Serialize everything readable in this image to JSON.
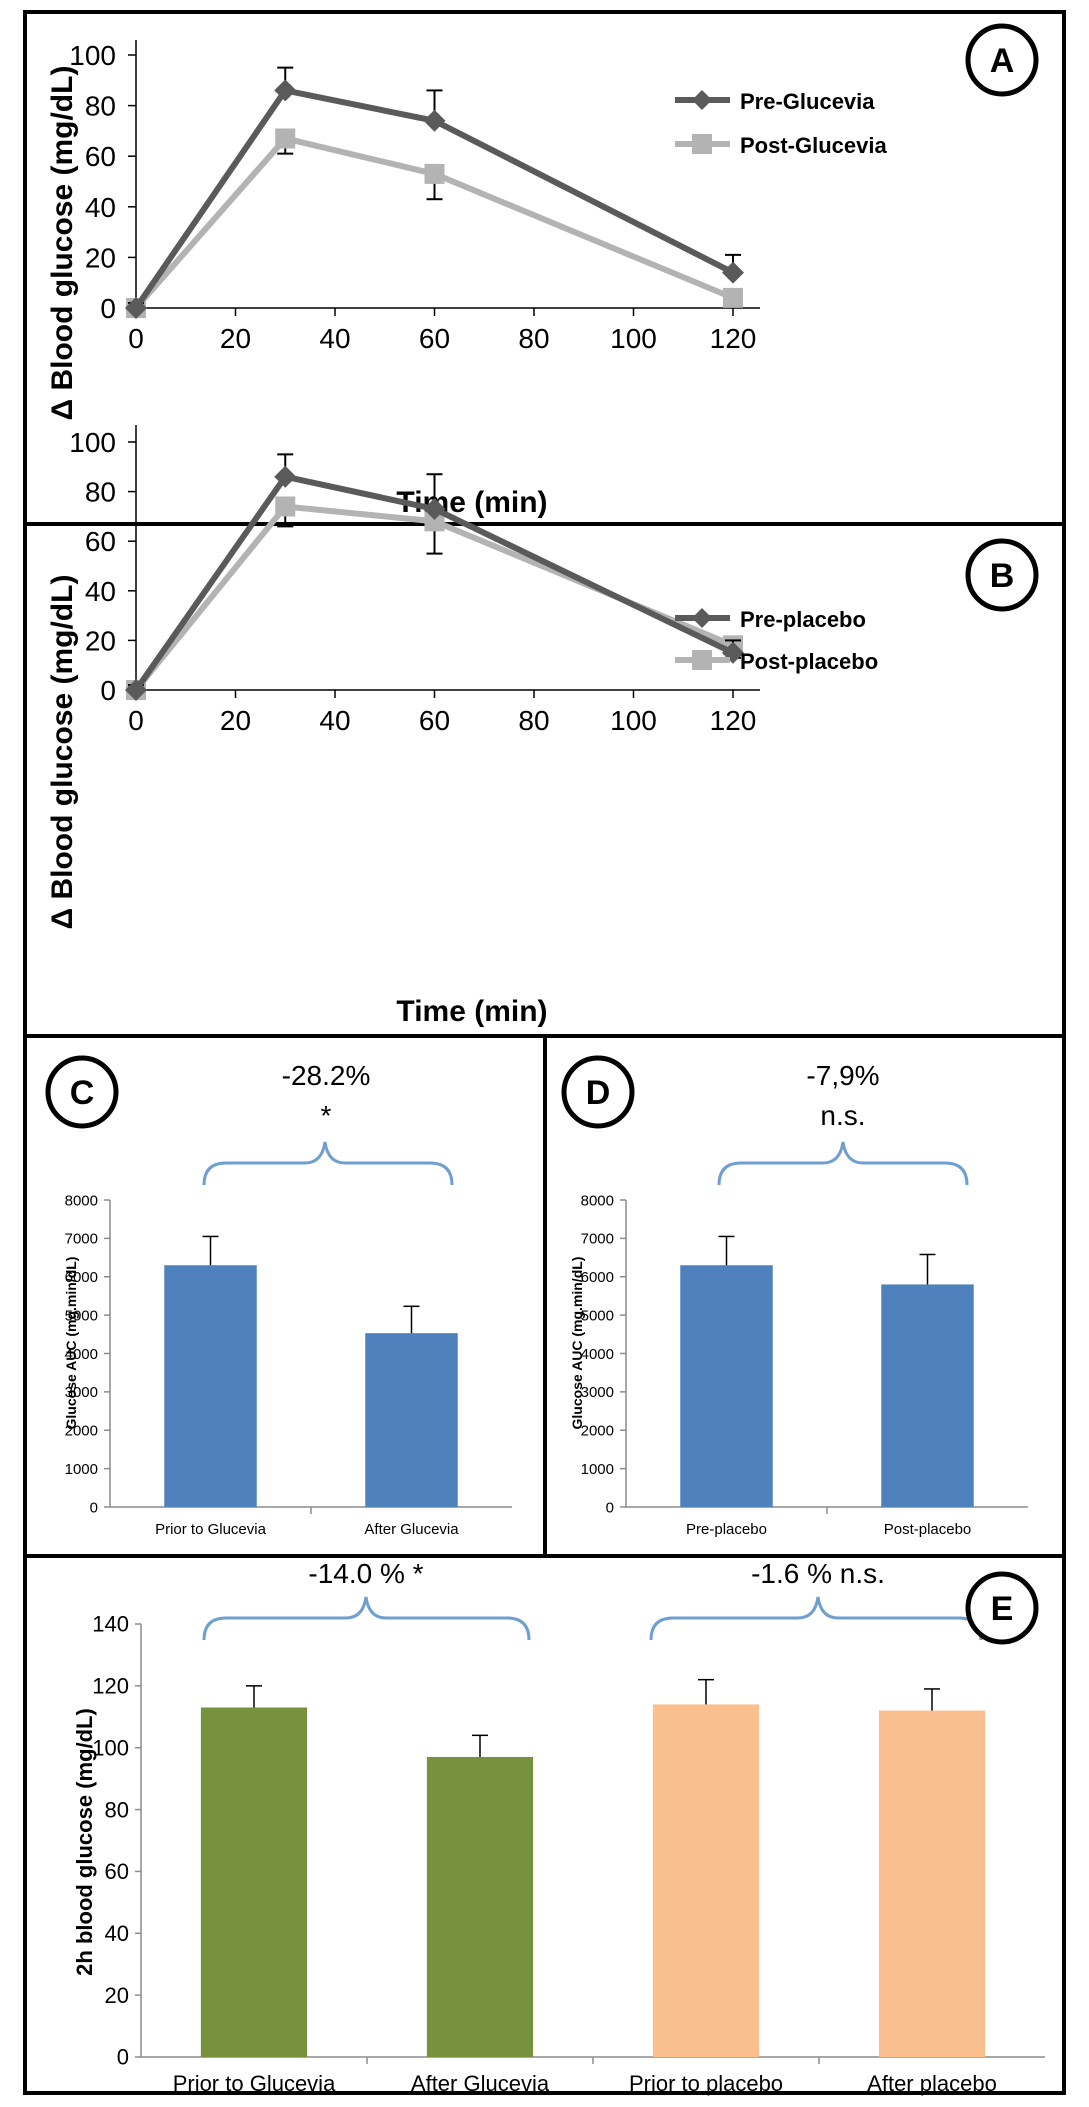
{
  "panel_labels": {
    "a": "A",
    "b": "B",
    "c": "C",
    "d": "D",
    "e": "E"
  },
  "colors": {
    "pre_line": "#5a5a5a",
    "post_line": "#b3b3b3",
    "bar_blue": "#4f81bd",
    "bar_green": "#76923c",
    "bar_peach": "#f9bf8f",
    "brace": "#6f9fd0",
    "axis": "#000000"
  },
  "annotations": {
    "c_pct": "-28.2%",
    "c_sig": "*",
    "d_pct": "-7,9%",
    "d_sig": "n.s.",
    "e_left": "-14.0 % *",
    "e_right": "-1.6 % n.s."
  },
  "chart_data": [
    {
      "id": "A",
      "type": "line",
      "xlabel": "Time (min)",
      "ylabel": "Δ Blood glucose (mg/dL)",
      "xlim": [
        0,
        120
      ],
      "ylim": [
        0,
        100
      ],
      "xticks": [
        0,
        20,
        40,
        60,
        80,
        100,
        120
      ],
      "yticks": [
        0,
        20,
        40,
        60,
        80,
        100
      ],
      "legend": "top-right",
      "grid": false,
      "x": [
        0,
        30,
        60,
        120
      ],
      "series": [
        {
          "name": "Pre-Glucevia",
          "marker": "diamond",
          "values": [
            0,
            86,
            74,
            14
          ],
          "error": [
            2,
            9,
            12,
            7
          ]
        },
        {
          "name": "Post-Glucevia",
          "marker": "square",
          "values": [
            0,
            67,
            53,
            4
          ],
          "error": [
            2,
            6,
            10,
            0
          ]
        }
      ]
    },
    {
      "id": "B",
      "type": "line",
      "xlabel": "Time (min)",
      "ylabel": "Δ Blood glucose (mg/dL)",
      "xlim": [
        0,
        120
      ],
      "ylim": [
        0,
        100
      ],
      "xticks": [
        0,
        20,
        40,
        60,
        80,
        100,
        120
      ],
      "yticks": [
        0,
        20,
        40,
        60,
        80,
        100
      ],
      "legend": "top-right",
      "grid": false,
      "x": [
        0,
        30,
        60,
        120
      ],
      "series": [
        {
          "name": "Pre-placebo",
          "marker": "diamond",
          "values": [
            0,
            86,
            73,
            15
          ],
          "error": [
            2,
            9,
            14,
            5
          ]
        },
        {
          "name": "Post-placebo",
          "marker": "square",
          "values": [
            0,
            74,
            68,
            18
          ],
          "error": [
            2,
            8,
            13,
            5
          ]
        }
      ]
    },
    {
      "id": "C",
      "type": "bar",
      "ylabel": "Glucose AUC (mg.min/dL)",
      "ylim": [
        0,
        8000
      ],
      "yticks": [
        0,
        1000,
        2000,
        3000,
        4000,
        5000,
        6000,
        7000,
        8000
      ],
      "categories": [
        "Prior to Glucevia",
        "After Glucevia"
      ],
      "values": [
        6300,
        4530
      ],
      "error": [
        750,
        700
      ]
    },
    {
      "id": "D",
      "type": "bar",
      "ylabel": "Glucose AUC (mg.min/dL)",
      "ylim": [
        0,
        8000
      ],
      "yticks": [
        0,
        1000,
        2000,
        3000,
        4000,
        5000,
        6000,
        7000,
        8000
      ],
      "categories": [
        "Pre-placebo",
        "Post-placebo"
      ],
      "values": [
        6300,
        5800
      ],
      "error": [
        750,
        780
      ]
    },
    {
      "id": "E",
      "type": "bar",
      "ylabel": "2h blood glucose (mg/dL)",
      "ylim": [
        0,
        140
      ],
      "yticks": [
        0,
        20,
        40,
        60,
        80,
        100,
        120,
        140
      ],
      "categories": [
        "Prior to Glucevia",
        "After Glucevia",
        "Prior to placebo",
        "After placebo"
      ],
      "values": [
        113,
        97,
        114,
        112
      ],
      "error": [
        7,
        7,
        8,
        7
      ]
    }
  ]
}
